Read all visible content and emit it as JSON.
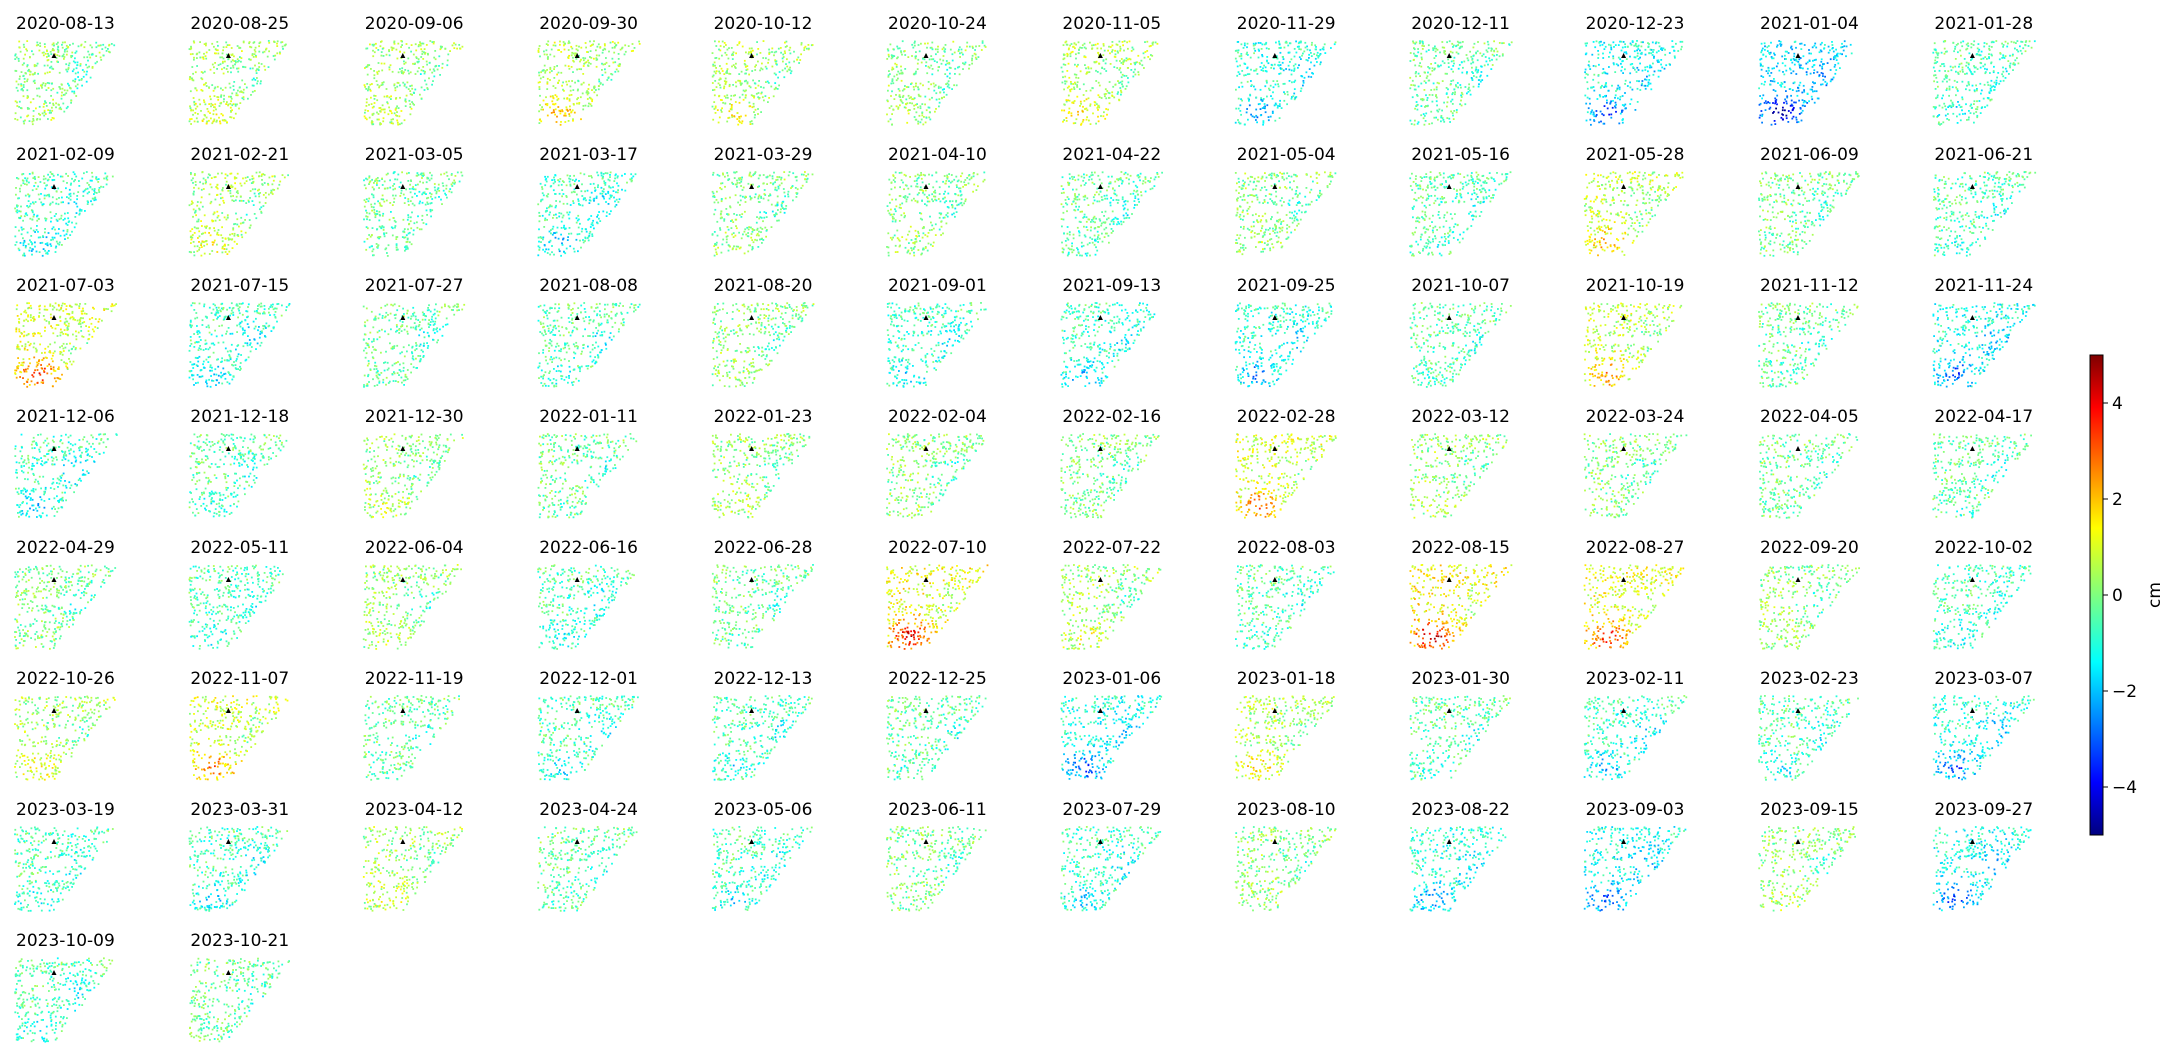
{
  "chart_data": {
    "type": "heatmap",
    "description_kind": "small-multiples",
    "panel_titles": [
      "2020-08-13",
      "2020-08-25",
      "2020-09-06",
      "2020-09-30",
      "2020-10-12",
      "2020-10-24",
      "2020-11-05",
      "2020-11-29",
      "2020-12-11",
      "2020-12-23",
      "2021-01-04",
      "2021-01-28",
      "2021-02-09",
      "2021-02-21",
      "2021-03-05",
      "2021-03-17",
      "2021-03-29",
      "2021-04-10",
      "2021-04-22",
      "2021-05-04",
      "2021-05-16",
      "2021-05-28",
      "2021-06-09",
      "2021-06-21",
      "2021-07-03",
      "2021-07-15",
      "2021-07-27",
      "2021-08-08",
      "2021-08-20",
      "2021-09-01",
      "2021-09-13",
      "2021-09-25",
      "2021-10-07",
      "2021-10-19",
      "2021-11-12",
      "2021-11-24",
      "2021-12-06",
      "2021-12-18",
      "2021-12-30",
      "2022-01-11",
      "2022-01-23",
      "2022-02-04",
      "2022-02-16",
      "2022-02-28",
      "2022-03-12",
      "2022-03-24",
      "2022-04-05",
      "2022-04-17",
      "2022-04-29",
      "2022-05-11",
      "2022-06-04",
      "2022-06-16",
      "2022-06-28",
      "2022-07-10",
      "2022-07-22",
      "2022-08-03",
      "2022-08-15",
      "2022-08-27",
      "2022-09-20",
      "2022-10-02",
      "2022-10-26",
      "2022-11-07",
      "2022-11-19",
      "2022-12-01",
      "2022-12-13",
      "2022-12-25",
      "2023-01-06",
      "2023-01-18",
      "2023-01-30",
      "2023-02-11",
      "2023-02-23",
      "2023-03-07",
      "2023-03-19",
      "2023-03-31",
      "2023-04-12",
      "2023-04-24",
      "2023-05-06",
      "2023-06-11",
      "2023-07-29",
      "2023-08-10",
      "2023-08-22",
      "2023-09-03",
      "2023-09-15",
      "2023-09-27",
      "2023-10-09",
      "2023-10-21"
    ],
    "panel_tone": [
      0.2,
      0.5,
      0.4,
      0.9,
      0.6,
      0.2,
      0.7,
      -1.2,
      -0.3,
      -1.6,
      -2.5,
      -0.6,
      -0.8,
      0.6,
      -0.2,
      -0.9,
      0.1,
      0.1,
      -0.4,
      0.2,
      -0.5,
      1.0,
      -0.1,
      -0.5,
      1.6,
      -0.9,
      -0.2,
      -0.5,
      0.2,
      -0.9,
      -1.0,
      -1.2,
      -0.3,
      1.2,
      -0.3,
      -1.5,
      -0.9,
      -0.4,
      0.4,
      -0.2,
      0.3,
      0.2,
      0.0,
      1.4,
      0.3,
      0.0,
      -0.1,
      -0.4,
      0.0,
      -0.6,
      0.3,
      -0.6,
      -0.2,
      2.0,
      0.5,
      -0.5,
      2.2,
      1.8,
      0.2,
      -0.7,
      0.6,
      1.4,
      -0.2,
      -0.7,
      -0.7,
      -0.4,
      -1.5,
      0.8,
      -0.4,
      -1.0,
      -0.6,
      -1.4,
      -0.6,
      -0.8,
      0.5,
      -0.3,
      -0.8,
      0.0,
      -0.9,
      0.2,
      -1.2,
      -1.6,
      0.3,
      -1.6,
      -0.6,
      -0.2
    ],
    "colormap": "jet",
    "color_range": [
      -5,
      5
    ],
    "colorbar": {
      "ticks": [
        -4,
        -2,
        0,
        2,
        4
      ],
      "tick_labels": [
        "−4",
        "−2",
        "0",
        "2",
        "4"
      ],
      "label": "cm",
      "position": "right"
    },
    "grid": false,
    "columns": 12
  }
}
